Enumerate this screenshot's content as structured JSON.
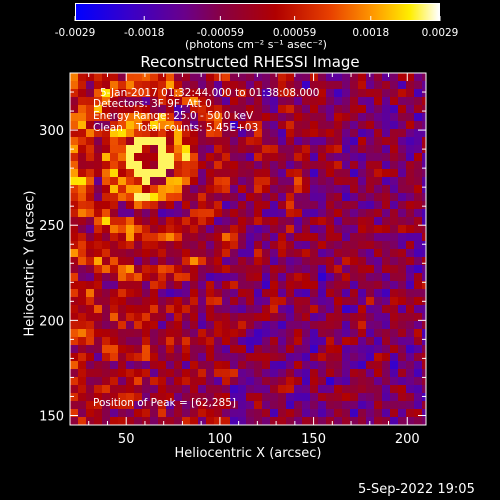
{
  "colorbar": {
    "tick_labels": [
      "-0.0029",
      "-0.0018",
      "-0.00059",
      "0.00059",
      "0.0018",
      "0.0029"
    ],
    "unit_label": "(photons cm⁻² s⁻¹ asec⁻²)",
    "range": [
      -0.0029,
      0.0029
    ]
  },
  "chart_data": {
    "type": "heatmap",
    "title": "Reconstructed RHESSI Image",
    "xlabel": "Heliocentric X (arcsec)",
    "ylabel": "Heliocentric Y (arcsec)",
    "xlim": [
      20,
      210
    ],
    "ylim": [
      145,
      330
    ],
    "x_ticks": [
      50,
      100,
      150,
      200
    ],
    "y_ticks": [
      150,
      200,
      250,
      300
    ],
    "peak": [
      62,
      285
    ],
    "annotations": {
      "line1": "5-Jan-2017 01:32:44.000 to 01:38:08.000",
      "line2": "Detectors: 3F 9F, Att 0",
      "line3": "Energy Range: 25.0 - 50.0 keV",
      "line4": "Clean    Total counts: 5.45E+03",
      "peak_text": "Position of Peak = [62,285]"
    },
    "colormap": "rhessi-blue-purple-red-yellow-white"
  },
  "footer": {
    "timestamp": "5-Sep-2022 19:05"
  }
}
